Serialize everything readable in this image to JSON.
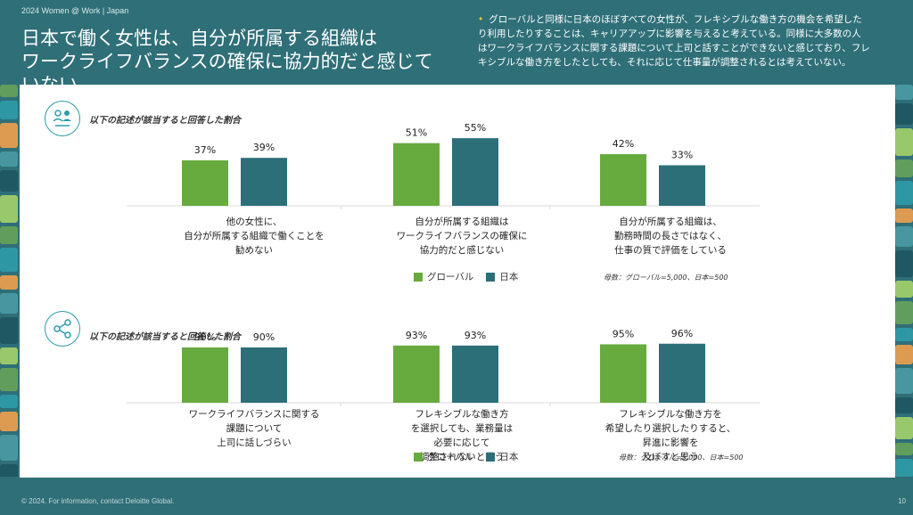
{
  "header": {
    "small": "2024 Women @ Work | Japan",
    "title_line1": "日本で働く女性は、自分が所属する組織は",
    "title_line2": "ワークライフバランスの確保に協力的だと感じていない",
    "note": "グローバルと同様に日本のほぼすべての女性が、フレキシブルな働き方の機会を希望したり利用したりすることは、キャリアアップに影響を与えると考えている。同様に大多数の人はワークライフバランスに関する課題について上司と話すことができないと感じており、フレキシブルな働き方をしたとしても、それに応じて仕事量が調整されるとは考えていない。"
  },
  "sections": [
    {
      "label": "以下の記述が該当すると回答した割合",
      "icon": "people-icon",
      "cat_lines": [
        [
          "他の女性に、",
          "自分が所属する組織で働くことを",
          "勧めない"
        ],
        [
          "自分が所属する組織は",
          "ワークライフバランスの確保に",
          "協力的だと感じない"
        ],
        [
          "自分が所属する組織は、",
          "勤務時間の長さではなく、",
          "仕事の質で評価をしている"
        ]
      ],
      "legend": [
        "グローバル",
        "日本"
      ],
      "sample_note": "母数：グローバル=5,000、日本=500"
    },
    {
      "label": "以下の記述が該当すると回答した割合",
      "icon": "share-icon",
      "cat_lines": [
        [
          "ワークライフバランスに関する",
          "課題について",
          "上司に話しづらい"
        ],
        [
          "フレキシブルな働き方",
          "を選択しても、業務量は",
          "必要に応じて",
          "調整されないと思う"
        ],
        [
          "フレキシブルな働き方を",
          "希望したり選択したりすると、",
          "昇進に影響を",
          "及ぼすと思う"
        ]
      ],
      "legend": [
        "グローバル",
        "日本"
      ],
      "sample_note": "母数：グローバル=5,000、日本=500"
    }
  ],
  "chart_data": [
    {
      "type": "bar",
      "categories": [
        "他の女性に、自分が所属する組織で働くことを勧めない",
        "自分が所属する組織はワークライフバランスの確保に協力的だと感じない",
        "自分が所属する組織は、勤務時間の長さではなく、仕事の質で評価をしている"
      ],
      "series": [
        {
          "name": "グローバル",
          "values": [
            37,
            51,
            42
          ],
          "labels": [
            "37%",
            "51%",
            "42%"
          ]
        },
        {
          "name": "日本",
          "values": [
            39,
            55,
            33
          ],
          "labels": [
            "39%",
            "55%",
            "33%"
          ]
        }
      ],
      "ylim": [
        0,
        100
      ],
      "legend_position": "bottom"
    },
    {
      "type": "bar",
      "categories": [
        "ワークライフバランスに関する課題について上司に話しづらい",
        "フレキシブルな働き方を選択しても、業務量は必要に応じて調整されないと思う",
        "フレキシブルな働き方を希望したり選択したりすると、昇進に影響を及ぼすと思う"
      ],
      "series": [
        {
          "name": "グローバル",
          "values": [
            90,
            93,
            95
          ],
          "labels": [
            "90%",
            "93%",
            "95%"
          ]
        },
        {
          "name": "日本",
          "values": [
            90,
            93,
            96
          ],
          "labels": [
            "90%",
            "93%",
            "96%"
          ]
        }
      ],
      "ylim": [
        0,
        200
      ],
      "legend_position": "bottom"
    }
  ],
  "colors": {
    "global": "#67ab3f",
    "japan": "#2c6f79",
    "background": "#2f6f78",
    "accent": "#2d9ca8"
  },
  "footer": {
    "copyright": "© 2024. For information, contact Deloitte Global.",
    "page": "10"
  }
}
